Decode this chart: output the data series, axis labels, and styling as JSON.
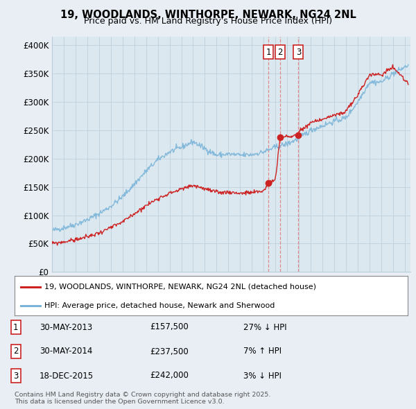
{
  "title": "19, WOODLANDS, WINTHORPE, NEWARK, NG24 2NL",
  "subtitle": "Price paid vs. HM Land Registry's House Price Index (HPI)",
  "ylabel_ticks": [
    "£0",
    "£50K",
    "£100K",
    "£150K",
    "£200K",
    "£250K",
    "£300K",
    "£350K",
    "£400K"
  ],
  "ytick_vals": [
    0,
    50000,
    100000,
    150000,
    200000,
    250000,
    300000,
    350000,
    400000
  ],
  "ylim": [
    0,
    415000
  ],
  "xlim_start": 1995.0,
  "xlim_end": 2025.5,
  "hpi_color": "#7ab4d8",
  "price_color": "#cc2222",
  "dashed_color": "#e08080",
  "dashed_color3": "#e08080",
  "background_color": "#e8eef4",
  "plot_bg_color": "#dce8f0",
  "grid_color": "#b8ccd8",
  "transactions": [
    {
      "date_num": 2013.41,
      "price": 157500,
      "label": "1"
    },
    {
      "date_num": 2014.41,
      "price": 237500,
      "label": "2"
    },
    {
      "date_num": 2015.96,
      "price": 242000,
      "label": "3"
    }
  ],
  "legend_entries": [
    "19, WOODLANDS, WINTHORPE, NEWARK, NG24 2NL (detached house)",
    "HPI: Average price, detached house, Newark and Sherwood"
  ],
  "table_rows": [
    {
      "num": "1",
      "date": "30-MAY-2013",
      "price": "£157,500",
      "hpi": "27% ↓ HPI"
    },
    {
      "num": "2",
      "date": "30-MAY-2014",
      "price": "£237,500",
      "hpi": "7% ↑ HPI"
    },
    {
      "num": "3",
      "date": "18-DEC-2015",
      "price": "£242,000",
      "hpi": "3% ↓ HPI"
    }
  ],
  "footnote": "Contains HM Land Registry data © Crown copyright and database right 2025.\nThis data is licensed under the Open Government Licence v3.0.",
  "hpi_key_years": [
    1995,
    1996,
    1997,
    1998,
    1999,
    2000,
    2001,
    2002,
    2003,
    2004,
    2005,
    2006,
    2007,
    2008,
    2009,
    2010,
    2011,
    2012,
    2013,
    2014,
    2015,
    2016,
    2017,
    2018,
    2019,
    2020,
    2021,
    2022,
    2023,
    2024,
    2025.3
  ],
  "hpi_key_vals": [
    73000,
    78000,
    84000,
    92000,
    103000,
    116000,
    133000,
    155000,
    178000,
    198000,
    212000,
    220000,
    230000,
    218000,
    206000,
    208000,
    206000,
    207000,
    212000,
    220000,
    226000,
    236000,
    250000,
    258000,
    266000,
    272000,
    300000,
    335000,
    335000,
    350000,
    365000
  ],
  "price_key_years": [
    1995,
    1996,
    1997,
    1998,
    1999,
    2000,
    2001,
    2002,
    2003,
    2004,
    2005,
    2006,
    2007,
    2008,
    2009,
    2010,
    2011,
    2012,
    2013.0,
    2013.41,
    2013.45,
    2014.0,
    2014.41,
    2014.45,
    2015.5,
    2015.96,
    2016.0,
    2017,
    2018,
    2019,
    2020,
    2021,
    2022,
    2023,
    2024,
    2025.3
  ],
  "price_key_vals": [
    50000,
    53000,
    57000,
    62000,
    69000,
    78000,
    88000,
    103000,
    117000,
    130000,
    139000,
    146000,
    153000,
    147000,
    140000,
    141000,
    139000,
    140000,
    143000,
    157500,
    157500,
    163000,
    237500,
    237500,
    240000,
    242000,
    248000,
    263000,
    270000,
    276000,
    283000,
    312000,
    348000,
    348000,
    362000,
    333000
  ]
}
